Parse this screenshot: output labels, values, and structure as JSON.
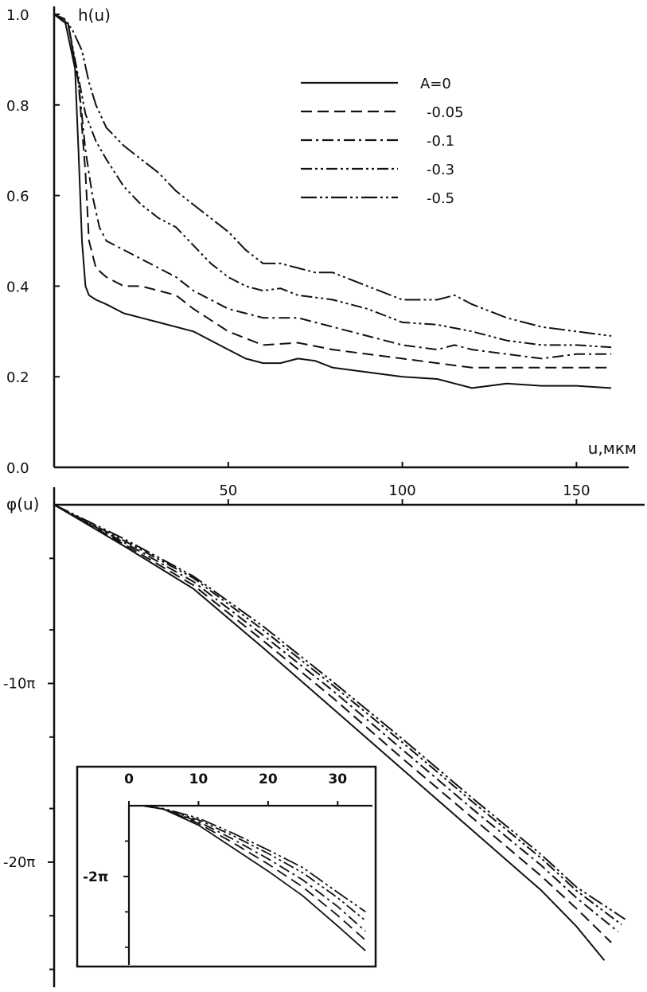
{
  "chart_data": [
    {
      "type": "line",
      "ylabel": "h(u)",
      "xlabel": "u,мкм",
      "xlim": [
        0,
        165
      ],
      "ylim": [
        0.0,
        1.0
      ],
      "x_ticks": [
        50,
        100,
        150
      ],
      "x_tick_labels": [
        "50",
        "100",
        "150"
      ],
      "y_ticks": [
        0.0,
        0.2,
        0.4,
        0.6,
        0.8,
        1.0
      ],
      "y_tick_labels": [
        "0.0",
        "0.2",
        "0.4",
        "0.6",
        "0.8",
        "1.0"
      ],
      "legend_position": "top-right",
      "grid": false,
      "series": [
        {
          "name": "A=0",
          "dash": "solid",
          "x": [
            0,
            3,
            6,
            7,
            8,
            9,
            10,
            12,
            15,
            20,
            25,
            30,
            40,
            50,
            55,
            60,
            65,
            70,
            75,
            80,
            90,
            100,
            110,
            115,
            120,
            125,
            130,
            140,
            150,
            160
          ],
          "y": [
            1.0,
            0.99,
            0.88,
            0.7,
            0.5,
            0.4,
            0.38,
            0.37,
            0.36,
            0.34,
            0.33,
            0.32,
            0.3,
            0.26,
            0.24,
            0.23,
            0.23,
            0.24,
            0.235,
            0.22,
            0.21,
            0.2,
            0.195,
            0.185,
            0.175,
            0.18,
            0.185,
            0.18,
            0.18,
            0.175
          ]
        },
        {
          "name": "-0.05",
          "dash": "dash",
          "x": [
            0,
            4,
            7,
            9,
            10,
            12,
            15,
            20,
            25,
            30,
            35,
            40,
            50,
            60,
            70,
            80,
            90,
            100,
            110,
            120,
            130,
            140,
            150,
            160
          ],
          "y": [
            1.0,
            0.98,
            0.85,
            0.65,
            0.5,
            0.44,
            0.42,
            0.4,
            0.4,
            0.39,
            0.38,
            0.35,
            0.3,
            0.27,
            0.275,
            0.26,
            0.25,
            0.24,
            0.23,
            0.22,
            0.22,
            0.22,
            0.22,
            0.22
          ]
        },
        {
          "name": "-0.1",
          "dash": "dashdot",
          "x": [
            0,
            4,
            7,
            9,
            11,
            13,
            15,
            20,
            25,
            30,
            35,
            40,
            50,
            60,
            70,
            80,
            90,
            100,
            110,
            115,
            120,
            130,
            140,
            150,
            160
          ],
          "y": [
            1.0,
            0.98,
            0.85,
            0.7,
            0.6,
            0.53,
            0.5,
            0.48,
            0.46,
            0.44,
            0.42,
            0.39,
            0.35,
            0.33,
            0.33,
            0.31,
            0.29,
            0.27,
            0.26,
            0.27,
            0.26,
            0.25,
            0.24,
            0.25,
            0.25
          ]
        },
        {
          "name": "-0.3",
          "dash": "dashdotdot",
          "x": [
            0,
            4,
            6,
            9,
            12,
            15,
            20,
            25,
            30,
            35,
            40,
            45,
            50,
            55,
            60,
            65,
            70,
            75,
            80,
            90,
            100,
            110,
            120,
            130,
            140,
            150,
            160
          ],
          "y": [
            1.0,
            0.98,
            0.9,
            0.78,
            0.72,
            0.68,
            0.62,
            0.58,
            0.55,
            0.53,
            0.49,
            0.45,
            0.42,
            0.4,
            0.39,
            0.395,
            0.38,
            0.375,
            0.37,
            0.35,
            0.32,
            0.315,
            0.3,
            0.28,
            0.27,
            0.27,
            0.265
          ]
        },
        {
          "name": "-0.5",
          "dash": "longdashdotdot",
          "x": [
            0,
            5,
            8,
            10,
            12,
            15,
            20,
            25,
            30,
            35,
            40,
            50,
            55,
            60,
            65,
            70,
            75,
            80,
            90,
            100,
            110,
            115,
            120,
            130,
            140,
            150,
            160
          ],
          "y": [
            1.0,
            0.97,
            0.92,
            0.85,
            0.8,
            0.75,
            0.71,
            0.68,
            0.65,
            0.61,
            0.58,
            0.52,
            0.48,
            0.45,
            0.45,
            0.44,
            0.43,
            0.43,
            0.4,
            0.37,
            0.37,
            0.38,
            0.36,
            0.33,
            0.31,
            0.3,
            0.29
          ]
        }
      ]
    },
    {
      "type": "line",
      "ylabel": "φ(u)",
      "xlim": [
        0,
        165
      ],
      "ylim": [
        -27,
        0
      ],
      "y_ticks": [
        -10,
        -20
      ],
      "y_tick_labels": [
        "-10π",
        "-20π"
      ],
      "y_minor_ticks": [
        -3,
        -7,
        -13,
        -17,
        -23,
        -26
      ],
      "series": [
        {
          "name": "A=0",
          "dash": "solid",
          "x": [
            0,
            20,
            40,
            60,
            80,
            100,
            120,
            140,
            150,
            158
          ],
          "y": [
            0,
            -2.3,
            -4.7,
            -8.0,
            -11.4,
            -14.8,
            -18.2,
            -21.6,
            -23.6,
            -25.5
          ]
        },
        {
          "name": "-0.05",
          "dash": "dash",
          "x": [
            0,
            20,
            40,
            60,
            80,
            100,
            120,
            140,
            150,
            160
          ],
          "y": [
            0,
            -2.2,
            -4.5,
            -7.6,
            -10.8,
            -14.2,
            -17.5,
            -20.8,
            -22.6,
            -24.5
          ]
        },
        {
          "name": "-0.1",
          "dash": "dashdot",
          "x": [
            0,
            20,
            40,
            60,
            80,
            100,
            120,
            140,
            150,
            162
          ],
          "y": [
            0,
            -2.1,
            -4.3,
            -7.3,
            -10.4,
            -13.7,
            -17.0,
            -20.2,
            -22.0,
            -23.9
          ]
        },
        {
          "name": "-0.3",
          "dash": "dashdotdot",
          "x": [
            0,
            20,
            40,
            60,
            80,
            100,
            120,
            140,
            150,
            163
          ],
          "y": [
            0,
            -2.0,
            -4.1,
            -7.0,
            -10.1,
            -13.3,
            -16.6,
            -19.8,
            -21.6,
            -23.5
          ]
        },
        {
          "name": "-0.5",
          "dash": "longdashdotdot",
          "x": [
            0,
            20,
            40,
            60,
            80,
            100,
            120,
            140,
            150,
            164
          ],
          "y": [
            0,
            -1.9,
            -4.0,
            -6.8,
            -9.9,
            -13.1,
            -16.4,
            -19.6,
            -21.4,
            -23.2
          ]
        }
      ]
    },
    {
      "type": "line",
      "inset": true,
      "xlim": [
        -2,
        35
      ],
      "ylim": [
        -4.5,
        0
      ],
      "x_ticks": [
        0,
        10,
        20,
        30
      ],
      "x_tick_labels": [
        "0",
        "10",
        "20",
        "30"
      ],
      "y_ticks": [
        -2
      ],
      "y_tick_labels": [
        "-2π"
      ],
      "series": [
        {
          "name": "A=0",
          "dash": "solid",
          "x": [
            2,
            5,
            10,
            15,
            20,
            25,
            30,
            34
          ],
          "y": [
            0,
            -0.1,
            -0.55,
            -1.2,
            -1.85,
            -2.55,
            -3.4,
            -4.1
          ]
        },
        {
          "name": "-0.05",
          "dash": "dash",
          "x": [
            2,
            5,
            10,
            15,
            20,
            25,
            30,
            34
          ],
          "y": [
            0,
            -0.1,
            -0.5,
            -1.05,
            -1.65,
            -2.3,
            -3.1,
            -3.8
          ]
        },
        {
          "name": "-0.1",
          "dash": "dashdot",
          "x": [
            2,
            5,
            10,
            15,
            20,
            25,
            30,
            34
          ],
          "y": [
            0,
            -0.1,
            -0.45,
            -0.95,
            -1.5,
            -2.1,
            -2.85,
            -3.55
          ]
        },
        {
          "name": "-0.3",
          "dash": "dashdotdot",
          "x": [
            2,
            5,
            10,
            15,
            20,
            25,
            30,
            34
          ],
          "y": [
            0,
            -0.1,
            -0.4,
            -0.85,
            -1.35,
            -1.9,
            -2.6,
            -3.25
          ]
        },
        {
          "name": "-0.5",
          "dash": "longdashdotdot",
          "x": [
            2,
            5,
            10,
            15,
            20,
            25,
            30,
            34
          ],
          "y": [
            0,
            -0.08,
            -0.35,
            -0.78,
            -1.25,
            -1.75,
            -2.45,
            -3.0
          ]
        }
      ]
    }
  ]
}
